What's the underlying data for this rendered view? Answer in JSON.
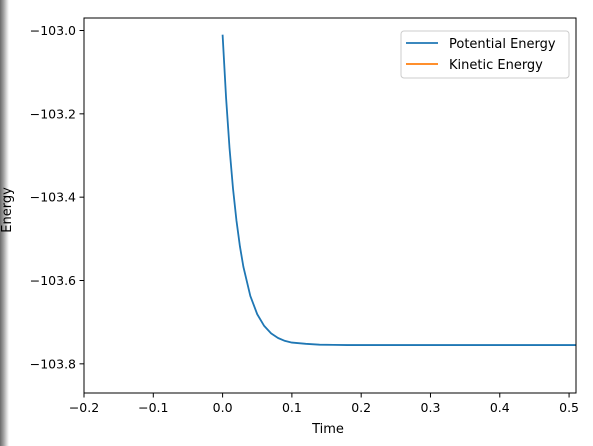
{
  "chart_data": {
    "type": "line",
    "title": "",
    "xlabel": "Time",
    "ylabel": "Energy",
    "xlim": [
      -0.2,
      0.51
    ],
    "ylim": [
      -103.87,
      -102.97
    ],
    "x_ticks": [
      -0.2,
      -0.1,
      0.0,
      0.1,
      0.2,
      0.3,
      0.4,
      0.5
    ],
    "x_tick_labels": [
      "−0.2",
      "−0.1",
      "0.0",
      "0.1",
      "0.2",
      "0.3",
      "0.4",
      "0.5"
    ],
    "y_ticks": [
      -103.0,
      -103.2,
      -103.4,
      -103.6,
      -103.8
    ],
    "y_tick_labels": [
      "−103.0",
      "−103.2",
      "−103.4",
      "−103.6",
      "−103.8"
    ],
    "legend_position": "top-right",
    "grid": false,
    "series": [
      {
        "name": "Potential Energy",
        "color": "#1f77b4",
        "x": [
          0.0,
          0.005,
          0.01,
          0.015,
          0.02,
          0.025,
          0.03,
          0.04,
          0.05,
          0.06,
          0.07,
          0.08,
          0.09,
          0.1,
          0.12,
          0.14,
          0.16,
          0.18,
          0.2,
          0.25,
          0.3,
          0.4,
          0.5,
          0.51
        ],
        "y": [
          -103.01,
          -103.161,
          -103.282,
          -103.379,
          -103.456,
          -103.518,
          -103.567,
          -103.637,
          -103.681,
          -103.709,
          -103.727,
          -103.738,
          -103.745,
          -103.749,
          -103.752,
          -103.754,
          -103.7545,
          -103.755,
          -103.755,
          -103.755,
          -103.755,
          -103.755,
          -103.755,
          -103.755
        ]
      },
      {
        "name": "Kinetic Energy",
        "color": "#ff7f0e",
        "x": [],
        "y": []
      }
    ]
  }
}
